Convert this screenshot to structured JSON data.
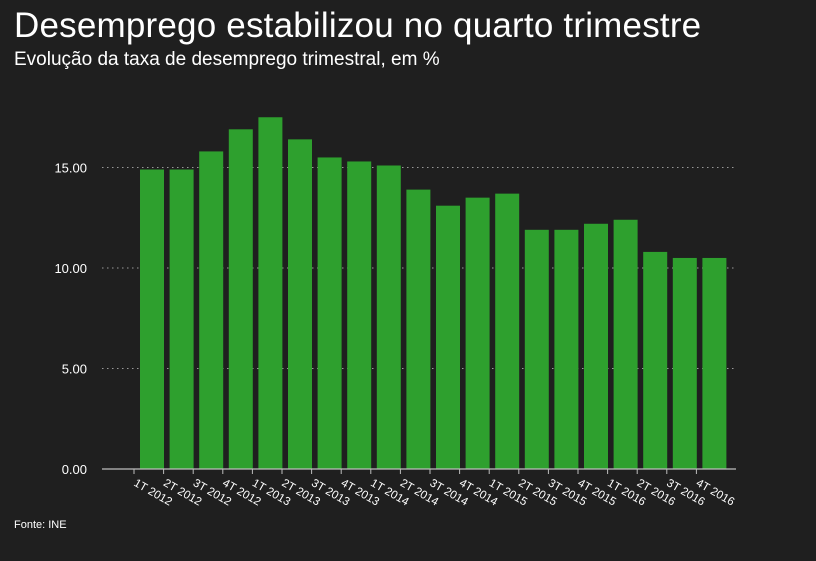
{
  "header": {
    "title": "Desemprego estabilizou no quarto trimestre",
    "subtitle": "Evolução da taxa de desemprego trimestral, em %"
  },
  "footer": {
    "source": "Fonte: INE"
  },
  "colors": {
    "background": "#1f1f1f",
    "bar": "#2ea02e",
    "text": "#ffffff",
    "grid": "#9a9a9a"
  },
  "chart_data": {
    "type": "bar",
    "title": "Desemprego estabilizou no quarto trimestre",
    "subtitle": "Evolução da taxa de desemprego trimestral, em %",
    "xlabel": "",
    "ylabel": "",
    "ylim": [
      0,
      18.5
    ],
    "yticks": [
      0,
      5,
      10,
      15
    ],
    "ytick_labels": [
      "0.00",
      "5.00",
      "10.00",
      "15.00"
    ],
    "grid": "horizontal-dotted",
    "categories": [
      "1T 2012",
      "2T 2012",
      "3T 2012",
      "4T 2012",
      "1T 2013",
      "2T 2013",
      "3T 2013",
      "4T 2013",
      "1T 2014",
      "2T 2014",
      "3T 2014",
      "4T 2014",
      "1T 2015",
      "2T 2015",
      "3T 2015",
      "4T 2015",
      "1T 2016",
      "2T 2016",
      "3T 2016",
      "4T 2016"
    ],
    "values": [
      14.9,
      14.9,
      15.8,
      16.9,
      17.5,
      16.4,
      15.5,
      15.3,
      15.1,
      13.9,
      13.1,
      13.5,
      13.7,
      11.9,
      11.9,
      12.2,
      12.4,
      10.8,
      10.5,
      10.5
    ]
  }
}
